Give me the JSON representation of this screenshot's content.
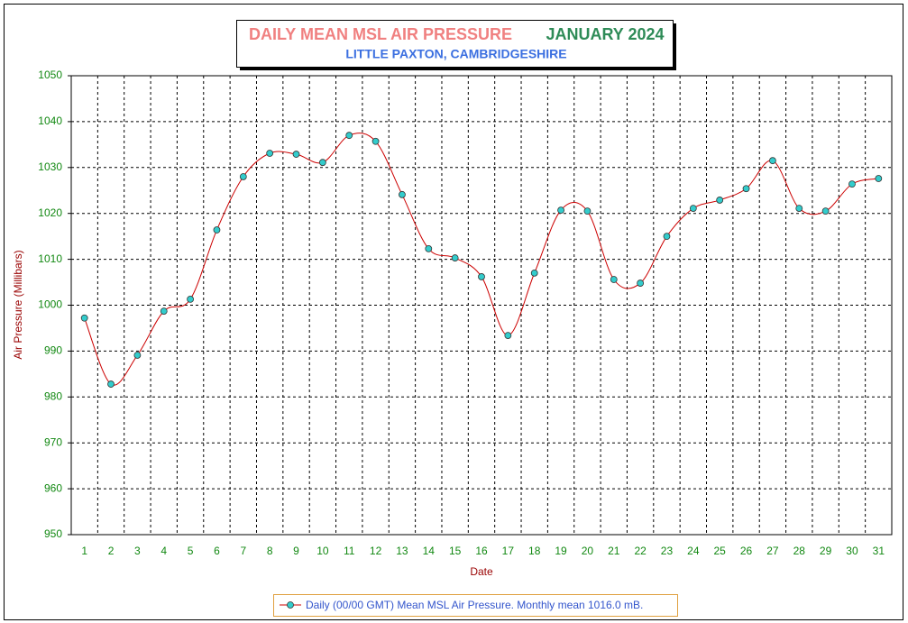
{
  "chart_data": {
    "type": "line",
    "title": "DAILY MEAN MSL AIR PRESSURE",
    "title_date": "JANUARY 2024",
    "subtitle": "LITTLE PAXTON, CAMBRIDGESHIRE",
    "x_label": "Date",
    "y_label": "Air Pressure (Millibars)",
    "categories": [
      "1",
      "2",
      "3",
      "4",
      "5",
      "6",
      "7",
      "8",
      "9",
      "10",
      "11",
      "12",
      "13",
      "14",
      "15",
      "16",
      "17",
      "18",
      "19",
      "20",
      "21",
      "22",
      "23",
      "24",
      "25",
      "26",
      "27",
      "28",
      "29",
      "30",
      "31"
    ],
    "series": [
      {
        "name": "Daily (00/00 GMT) Mean MSL Air Pressure. Monthly mean 1016.0 mB.",
        "color": "#cc0000",
        "marker_color": "#33cccc",
        "values": [
          997.2,
          982.8,
          989.1,
          998.7,
          1001.3,
          1016.4,
          1028.0,
          1033.1,
          1032.9,
          1031.1,
          1037.0,
          1035.7,
          1024.1,
          1012.3,
          1010.3,
          1006.2,
          993.4,
          1007.0,
          1020.7,
          1020.5,
          1005.6,
          1004.8,
          1015.0,
          1021.1,
          1022.9,
          1025.4,
          1031.5,
          1021.1,
          1020.5,
          1026.4,
          1027.6
        ]
      }
    ],
    "ylim": [
      950,
      1050
    ],
    "yticks": [
      950,
      960,
      970,
      980,
      990,
      1000,
      1010,
      1020,
      1030,
      1040,
      1050
    ],
    "grid": true
  }
}
